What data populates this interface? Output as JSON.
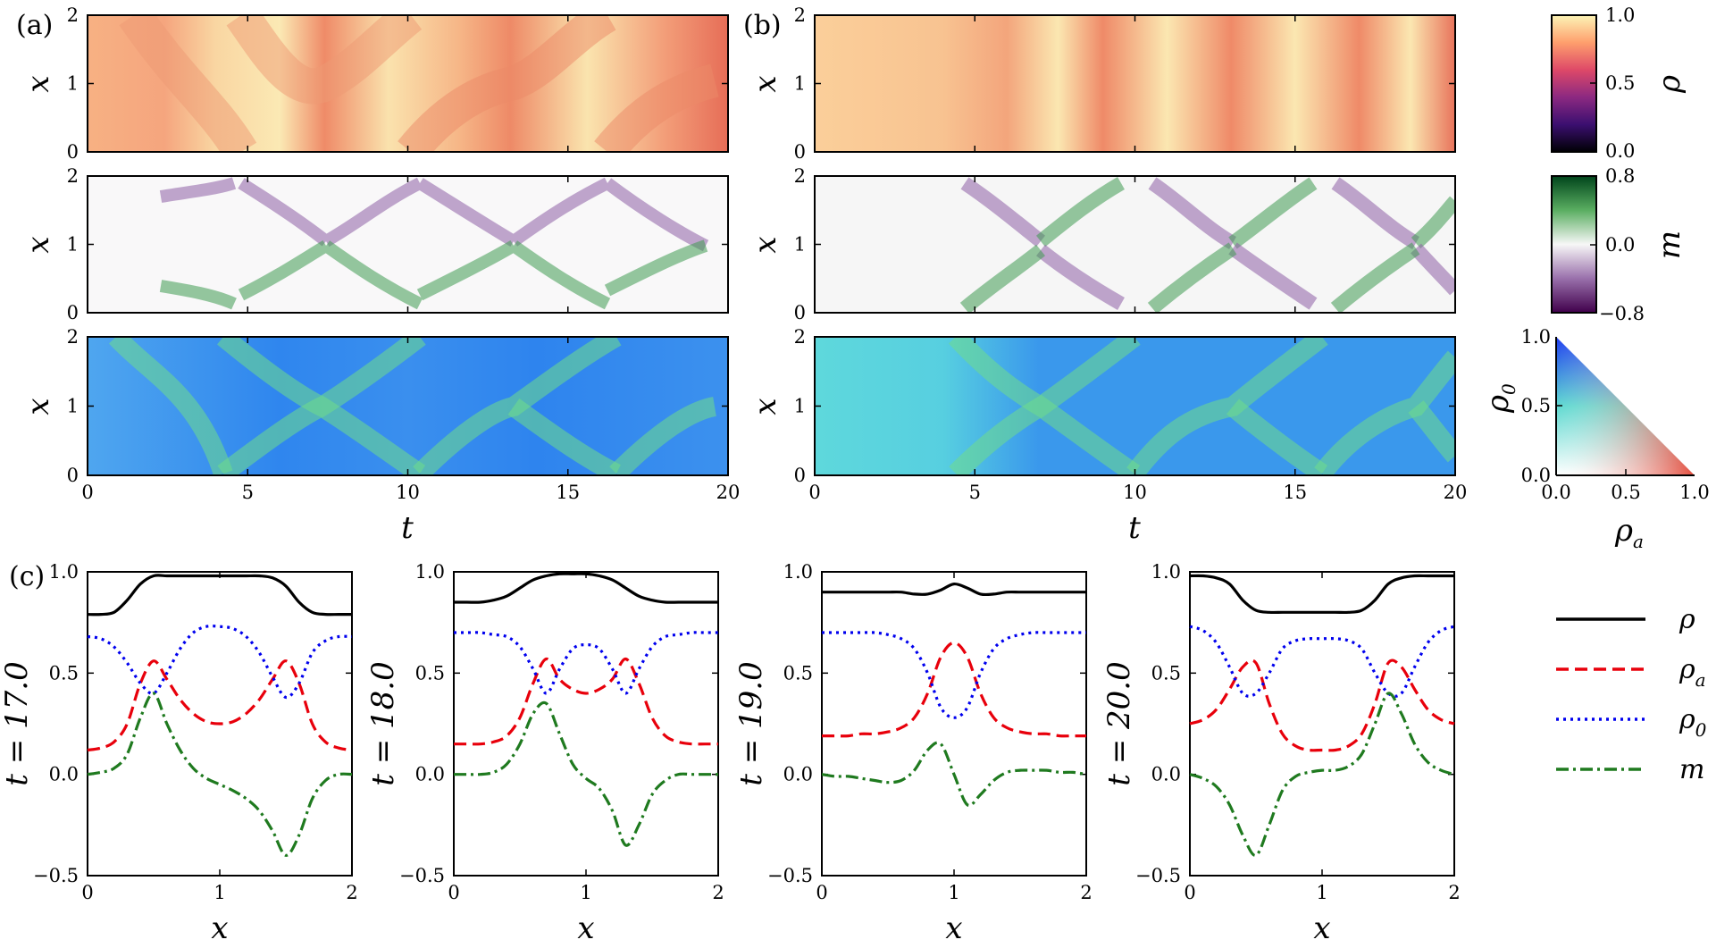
{
  "figure": {
    "panel_labels": {
      "a": "(a)",
      "b": "(b)",
      "c": "(c)"
    },
    "colorbars": {
      "rho": {
        "label": "ρ",
        "ticks": [
          "1.0",
          "0.5",
          "0.0"
        ]
      },
      "m": {
        "label": "m",
        "ticks": [
          "0.8",
          "0.0",
          "−0.8"
        ]
      },
      "triangle": {
        "xlabel": "ρ",
        "xlabel_sub": "a",
        "ylabel": "ρ",
        "ylabel_sub": "0",
        "xticks": [
          "0.0",
          "0.5",
          "1.0"
        ],
        "yticks": [
          "1.0",
          "0.5",
          "0.0"
        ]
      }
    }
  },
  "chart_data": [
    {
      "type": "heatmap",
      "panel": "a",
      "description_rows": [
        "rho",
        "m",
        "rho_a-rho_0 color map"
      ],
      "xlabel": "t",
      "ylabel": "x",
      "xlim": [
        0,
        20
      ],
      "ylim": [
        0,
        2
      ],
      "xticks": [
        "0",
        "5",
        "10",
        "15",
        "20"
      ],
      "yticks": [
        "0",
        "1",
        "2"
      ]
    },
    {
      "type": "heatmap",
      "panel": "b",
      "description_rows": [
        "rho",
        "m",
        "rho_a-rho_0 color map"
      ],
      "xlabel": "t",
      "ylabel": "x",
      "xlim": [
        0,
        20
      ],
      "ylim": [
        0,
        2
      ],
      "xticks": [
        "0",
        "5",
        "10",
        "15",
        "20"
      ],
      "yticks": [
        "0",
        "1",
        "2"
      ]
    },
    {
      "type": "line",
      "panel": "c",
      "xlabel": "x",
      "xlim": [
        0,
        2
      ],
      "ylim": [
        -0.5,
        1.0
      ],
      "xticks": [
        "0",
        "1",
        "2"
      ],
      "yticks": [
        "−0.5",
        "0.0",
        "0.5",
        "1.0"
      ],
      "x": [
        0,
        0.1,
        0.2,
        0.3,
        0.4,
        0.5,
        0.6,
        0.7,
        0.8,
        0.9,
        1.0,
        1.1,
        1.2,
        1.3,
        1.4,
        1.5,
        1.6,
        1.7,
        1.8,
        1.9,
        2.0
      ],
      "legend": [
        {
          "key": "rho",
          "name": "ρ",
          "sub": "",
          "color": "#000000",
          "dash": ""
        },
        {
          "key": "rho_a",
          "name": "ρ",
          "sub": "a",
          "color": "#e8000b",
          "dash": "14,7"
        },
        {
          "key": "rho_0",
          "name": "ρ",
          "sub": "0",
          "color": "#0000ee",
          "dash": "3,5"
        },
        {
          "key": "m",
          "name": "m",
          "sub": "",
          "color": "#1f7a1f",
          "dash": "14,5,3,5"
        }
      ],
      "panels": [
        {
          "ylabel": "t = 17.0",
          "series": {
            "rho": [
              0.79,
              0.79,
              0.8,
              0.86,
              0.94,
              0.98,
              0.98,
              0.98,
              0.98,
              0.98,
              0.98,
              0.98,
              0.98,
              0.98,
              0.97,
              0.93,
              0.85,
              0.8,
              0.79,
              0.79,
              0.79
            ],
            "rho_a": [
              0.12,
              0.13,
              0.16,
              0.25,
              0.45,
              0.56,
              0.47,
              0.37,
              0.3,
              0.26,
              0.25,
              0.26,
              0.3,
              0.37,
              0.47,
              0.56,
              0.45,
              0.25,
              0.16,
              0.13,
              0.12
            ],
            "rho_0": [
              0.68,
              0.67,
              0.63,
              0.55,
              0.45,
              0.4,
              0.5,
              0.62,
              0.7,
              0.73,
              0.73,
              0.72,
              0.68,
              0.6,
              0.48,
              0.38,
              0.45,
              0.6,
              0.66,
              0.68,
              0.68
            ],
            "m": [
              0.0,
              0.01,
              0.03,
              0.1,
              0.28,
              0.4,
              0.25,
              0.12,
              0.03,
              -0.02,
              -0.05,
              -0.08,
              -0.12,
              -0.18,
              -0.28,
              -0.4,
              -0.3,
              -0.12,
              -0.03,
              0.0,
              0.0
            ]
          }
        },
        {
          "ylabel": "t = 18.0",
          "series": {
            "rho": [
              0.85,
              0.85,
              0.85,
              0.86,
              0.88,
              0.92,
              0.96,
              0.98,
              0.99,
              0.99,
              0.99,
              0.98,
              0.96,
              0.92,
              0.88,
              0.86,
              0.85,
              0.85,
              0.85,
              0.85,
              0.85
            ],
            "rho_a": [
              0.15,
              0.15,
              0.15,
              0.16,
              0.19,
              0.28,
              0.45,
              0.57,
              0.47,
              0.42,
              0.4,
              0.42,
              0.47,
              0.57,
              0.45,
              0.28,
              0.19,
              0.16,
              0.15,
              0.15,
              0.15
            ],
            "rho_0": [
              0.7,
              0.7,
              0.7,
              0.69,
              0.68,
              0.63,
              0.52,
              0.4,
              0.52,
              0.62,
              0.64,
              0.62,
              0.52,
              0.4,
              0.52,
              0.63,
              0.68,
              0.69,
              0.7,
              0.7,
              0.7
            ],
            "m": [
              0.0,
              0.0,
              0.0,
              0.01,
              0.05,
              0.15,
              0.3,
              0.35,
              0.2,
              0.05,
              -0.02,
              -0.07,
              -0.18,
              -0.35,
              -0.25,
              -0.1,
              -0.03,
              0.0,
              0.0,
              0.0,
              0.0
            ]
          }
        },
        {
          "ylabel": "t = 19.0",
          "series": {
            "rho": [
              0.9,
              0.9,
              0.9,
              0.9,
              0.9,
              0.9,
              0.9,
              0.89,
              0.89,
              0.91,
              0.94,
              0.92,
              0.89,
              0.89,
              0.9,
              0.9,
              0.9,
              0.9,
              0.9,
              0.9,
              0.9
            ],
            "rho_a": [
              0.19,
              0.19,
              0.19,
              0.2,
              0.2,
              0.21,
              0.23,
              0.28,
              0.4,
              0.58,
              0.65,
              0.58,
              0.4,
              0.28,
              0.23,
              0.21,
              0.2,
              0.2,
              0.19,
              0.19,
              0.19
            ],
            "rho_0": [
              0.7,
              0.7,
              0.7,
              0.7,
              0.7,
              0.69,
              0.67,
              0.62,
              0.5,
              0.33,
              0.28,
              0.33,
              0.5,
              0.62,
              0.67,
              0.69,
              0.7,
              0.7,
              0.7,
              0.7,
              0.7
            ],
            "m": [
              0.0,
              -0.01,
              -0.01,
              -0.02,
              -0.03,
              -0.04,
              -0.03,
              0.02,
              0.12,
              0.15,
              0.0,
              -0.15,
              -0.1,
              -0.03,
              0.01,
              0.02,
              0.02,
              0.02,
              0.01,
              0.01,
              0.0
            ]
          }
        },
        {
          "ylabel": "t = 20.0",
          "series": {
            "rho": [
              0.98,
              0.98,
              0.97,
              0.94,
              0.86,
              0.81,
              0.8,
              0.8,
              0.8,
              0.8,
              0.8,
              0.8,
              0.8,
              0.81,
              0.86,
              0.94,
              0.97,
              0.98,
              0.98,
              0.98,
              0.98
            ],
            "rho_a": [
              0.25,
              0.27,
              0.32,
              0.42,
              0.53,
              0.55,
              0.35,
              0.2,
              0.14,
              0.12,
              0.12,
              0.12,
              0.14,
              0.2,
              0.35,
              0.55,
              0.53,
              0.42,
              0.32,
              0.27,
              0.25
            ],
            "rho_0": [
              0.73,
              0.71,
              0.65,
              0.53,
              0.4,
              0.4,
              0.5,
              0.62,
              0.66,
              0.67,
              0.67,
              0.67,
              0.66,
              0.62,
              0.5,
              0.4,
              0.4,
              0.53,
              0.65,
              0.71,
              0.73
            ],
            "m": [
              0.0,
              -0.02,
              -0.06,
              -0.15,
              -0.3,
              -0.4,
              -0.25,
              -0.08,
              -0.01,
              0.01,
              0.02,
              0.02,
              0.04,
              0.1,
              0.25,
              0.4,
              0.3,
              0.15,
              0.06,
              0.02,
              0.0
            ]
          }
        }
      ]
    }
  ]
}
